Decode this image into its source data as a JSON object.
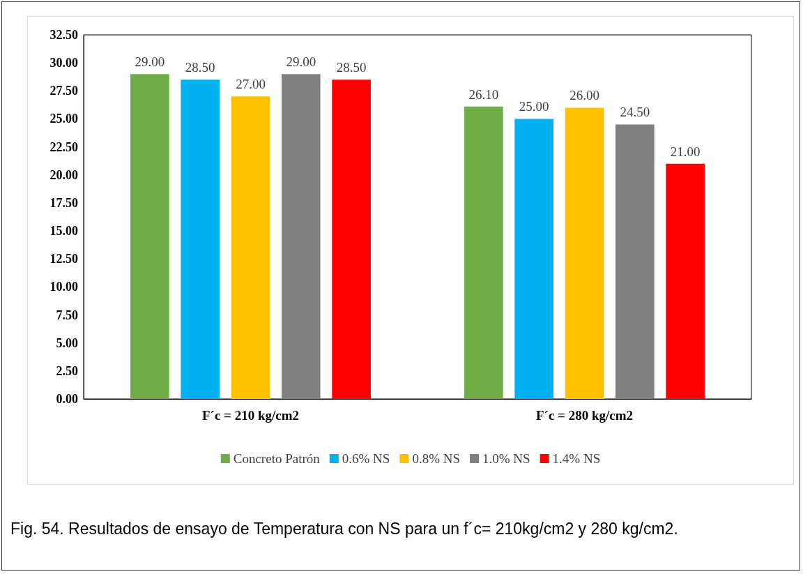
{
  "chart_data": {
    "type": "bar",
    "categories": [
      "F´c = 210 kg/cm2",
      "F´c = 280 kg/cm2"
    ],
    "series": [
      {
        "name": "Concreto Patrón",
        "color": "#70ad47",
        "values": [
          29,
          26.1
        ],
        "value_labels": [
          "29.00",
          "26.10"
        ]
      },
      {
        "name": "0.6% NS",
        "color": "#00b0f0",
        "values": [
          28.5,
          25
        ],
        "value_labels": [
          "28.50",
          "25.00"
        ]
      },
      {
        "name": "0.8% NS",
        "color": "#ffc000",
        "values": [
          27,
          26
        ],
        "value_labels": [
          "27.00",
          "26.00"
        ]
      },
      {
        "name": "1.0% NS",
        "color": "#808080",
        "values": [
          29,
          24.5
        ],
        "value_labels": [
          "29.00",
          "24.50"
        ]
      },
      {
        "name": "1.4% NS",
        "color": "#ff0000",
        "values": [
          28.5,
          21
        ],
        "value_labels": [
          "28.50",
          "21.00"
        ]
      }
    ],
    "ylim": [
      0,
      32.5
    ],
    "yticks": [
      {
        "value": 0,
        "label": "0.00"
      },
      {
        "value": 2.5,
        "label": "2.50"
      },
      {
        "value": 5,
        "label": "5.00"
      },
      {
        "value": 7.5,
        "label": "7.50"
      },
      {
        "value": 10,
        "label": "10.00"
      },
      {
        "value": 12.5,
        "label": "12.50"
      },
      {
        "value": 15,
        "label": "15.00"
      },
      {
        "value": 17.5,
        "label": "17.50"
      },
      {
        "value": 20,
        "label": "20.00"
      },
      {
        "value": 22.5,
        "label": "22.50"
      },
      {
        "value": 25,
        "label": "25.00"
      },
      {
        "value": 27.5,
        "label": "27.50"
      },
      {
        "value": 30,
        "label": "30.00"
      },
      {
        "value": 32.5,
        "label": "32.50"
      }
    ],
    "grid": false,
    "legend": "bottom",
    "annotations": [
      "Fig. 54. Resultados de ensayo de Temperatura con NS para un f´c= 210kg/cm2 y 280 kg/cm2."
    ]
  }
}
